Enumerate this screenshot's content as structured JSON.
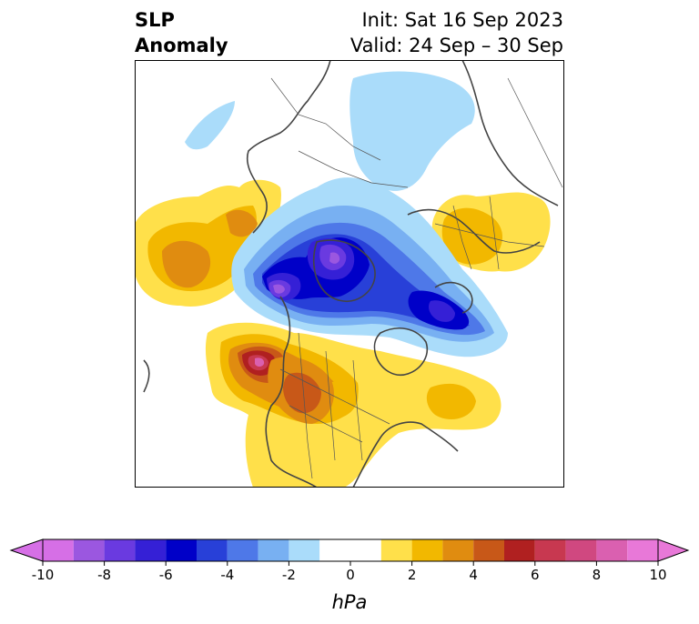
{
  "title": {
    "left_line1": "SLP",
    "left_line2": "Anomaly",
    "right_line1": "Init: Sat 16 Sep 2023",
    "right_line2": "Valid: 24 Sep – 30 Sep"
  },
  "colorbar": {
    "unit": "hPa",
    "ticks": [
      "-10",
      "-8",
      "-6",
      "-4",
      "-2",
      "0",
      "2",
      "4",
      "6",
      "8",
      "10"
    ],
    "levels": [
      -11,
      -9,
      -8,
      -7,
      -6,
      -5,
      -4,
      -3,
      -2,
      -1,
      1,
      2,
      3,
      4,
      5,
      6,
      7,
      8,
      9,
      11
    ],
    "colors": [
      "#d66fe6",
      "#9b57e0",
      "#6a3ae0",
      "#3520d6",
      "#0000c8",
      "#2840d8",
      "#4e78e8",
      "#78b0f2",
      "#aadcfa",
      "#ffffff",
      "#ffe04a",
      "#f2b800",
      "#e08c10",
      "#c85818",
      "#b02020",
      "#c83850",
      "#d04880",
      "#da60b0",
      "#e878d8"
    ],
    "extend_low_color": "#d66fe6",
    "extend_high_color": "#e878d8"
  },
  "map": {
    "projection": "north-polar-stereographic",
    "features": [
      {
        "name": "negative-anomaly-center-siberia",
        "sign": "low",
        "value": -7
      },
      {
        "name": "negative-anomaly-center-east-siberia",
        "sign": "low",
        "value": -9
      },
      {
        "name": "negative-anomaly-center-arctic",
        "sign": "low",
        "value": -8
      },
      {
        "name": "negative-anomaly-center-north-atlantic",
        "sign": "low",
        "value": -7
      },
      {
        "name": "positive-anomaly-center-gulf-of-alaska",
        "sign": "high",
        "value": 8
      },
      {
        "name": "positive-anomaly-center-canada",
        "sign": "high",
        "value": 5
      },
      {
        "name": "positive-anomaly-center-europe",
        "sign": "high",
        "value": 2
      },
      {
        "name": "positive-anomaly-center-north-pacific",
        "sign": "high",
        "value": 4
      }
    ]
  }
}
